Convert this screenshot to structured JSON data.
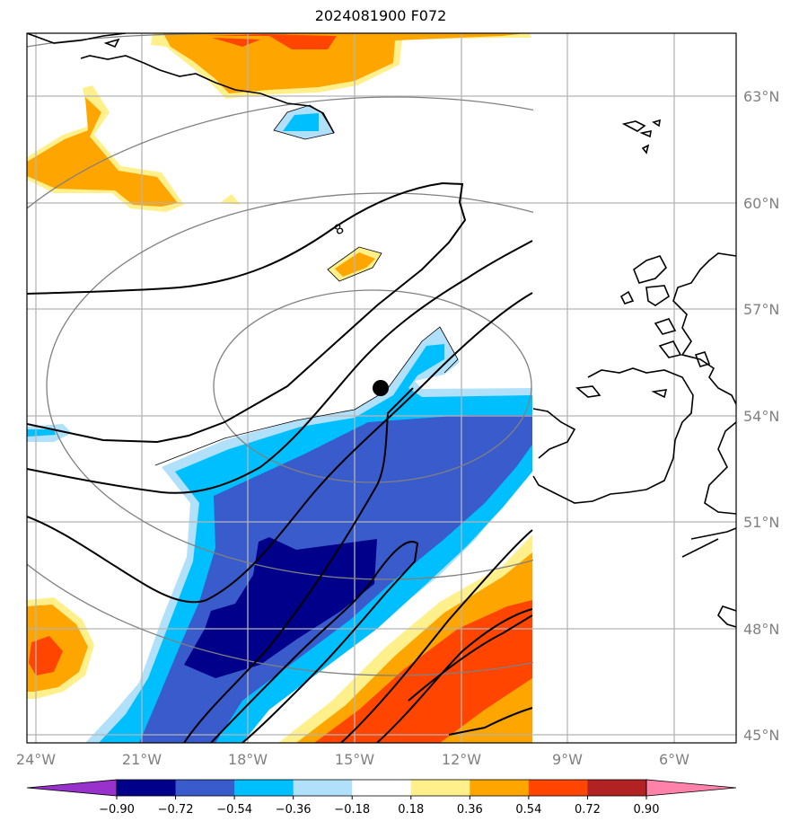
{
  "title": "2024081900 F072",
  "map": {
    "lon_labels": [
      "24°W",
      "21°W",
      "18°W",
      "15°W",
      "12°W",
      "9°W",
      "6°W"
    ],
    "lat_labels": [
      "63°N",
      "60°N",
      "57°N",
      "54°N",
      "51°N",
      "48°N",
      "45°N"
    ],
    "contour_label": "8",
    "grid": true,
    "marker": {
      "lon": "14.2°W",
      "lat": "54.8°N"
    }
  },
  "colorbar": {
    "labels": [
      "−0.90",
      "−0.72",
      "−0.54",
      "−0.36",
      "−0.18",
      "0.18",
      "0.36",
      "0.54",
      "0.72",
      "0.90"
    ],
    "colors": [
      "#9932cc",
      "#00008b",
      "#3a5bcc",
      "#00bfff",
      "#b0e0fa",
      "#ffffff",
      "#fff08c",
      "#ffa500",
      "#ff4500",
      "#b22222",
      "#ff82ab"
    ]
  }
}
